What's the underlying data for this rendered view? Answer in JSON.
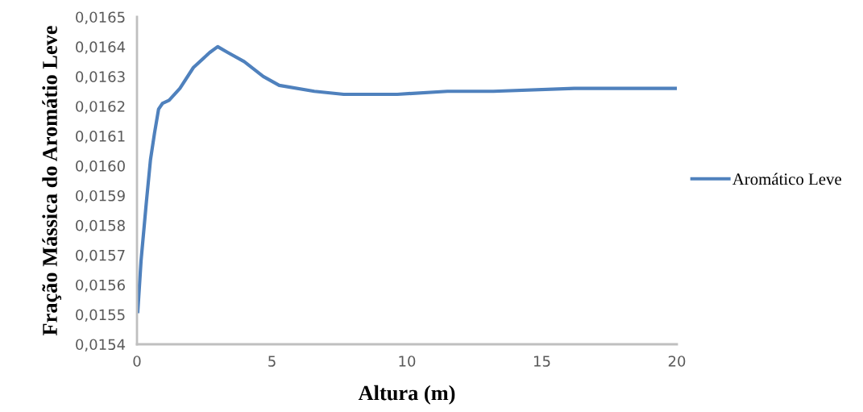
{
  "chart_data": {
    "type": "line",
    "xlabel": "Altura (m)",
    "ylabel": "Fração Mássica do Aromátio Leve",
    "x": [
      0.03,
      0.15,
      0.35,
      0.5,
      0.65,
      0.8,
      0.95,
      1.19,
      1.59,
      2.09,
      2.69,
      2.99,
      3.37,
      3.97,
      4.68,
      5.27,
      6.57,
      7.66,
      9.64,
      11.5,
      13.2,
      16.2,
      20
    ],
    "series": [
      {
        "name": "Aromático Leve",
        "color": "#4f81bd",
        "values": [
          0.01551,
          0.01568,
          0.01588,
          0.01602,
          0.01611,
          0.01619,
          0.01621,
          0.01622,
          0.01626,
          0.01633,
          0.01638,
          0.0164,
          0.01638,
          0.01635,
          0.0163,
          0.01627,
          0.01625,
          0.01624,
          0.01624,
          0.01625,
          0.01625,
          0.01626,
          0.01626
        ]
      }
    ],
    "xlim": [
      0,
      20
    ],
    "xticks": [
      0,
      5,
      10,
      15,
      20
    ],
    "ylim": [
      0.0154,
      0.0165
    ],
    "yticks": [
      {
        "value": 0.0154,
        "label": "0,0154"
      },
      {
        "value": 0.0155,
        "label": "0,0155"
      },
      {
        "value": 0.0156,
        "label": "0,0156"
      },
      {
        "value": 0.0157,
        "label": "0,0157"
      },
      {
        "value": 0.0158,
        "label": "0,0158"
      },
      {
        "value": 0.0159,
        "label": "0,0159"
      },
      {
        "value": 0.016,
        "label": "0,0160"
      },
      {
        "value": 0.0161,
        "label": "0,0161"
      },
      {
        "value": 0.0162,
        "label": "0,0162"
      },
      {
        "value": 0.0163,
        "label": "0,0163"
      },
      {
        "value": 0.0164,
        "label": "0,0164"
      },
      {
        "value": 0.0165,
        "label": "0,0165"
      }
    ],
    "legend": "right",
    "grid": false,
    "marker": "none",
    "line_style": "solid"
  }
}
